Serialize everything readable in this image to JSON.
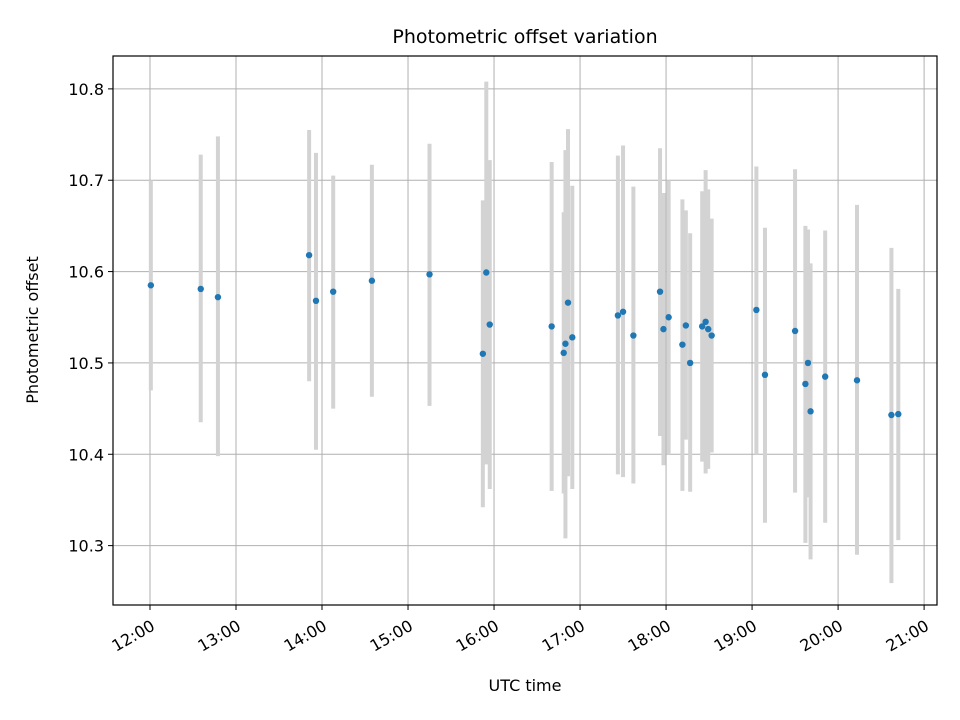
{
  "chart_data": {
    "type": "scatter",
    "title": "Photometric offset variation",
    "xlabel": "UTC time",
    "ylabel": "Photometric offset",
    "x_tick_labels": [
      "12:00",
      "13:00",
      "14:00",
      "15:00",
      "16:00",
      "17:00",
      "18:00",
      "19:00",
      "20:00",
      "21:00"
    ],
    "y_tick_labels": [
      "10.3",
      "10.4",
      "10.5",
      "10.6",
      "10.7",
      "10.8"
    ],
    "x_ticks_hours": [
      12,
      13,
      14,
      15,
      16,
      17,
      18,
      19,
      20,
      21
    ],
    "y_ticks": [
      10.3,
      10.4,
      10.5,
      10.6,
      10.7,
      10.8
    ],
    "xlim_hours": [
      11.57,
      21.15
    ],
    "ylim": [
      10.235,
      10.836
    ],
    "grid": true,
    "marker_color": "#1f77b4",
    "errorbar_color": "#d3d3d3",
    "series": [
      {
        "points": [
          {
            "t": 12.01,
            "y": 10.585,
            "lo": 10.47,
            "hi": 10.7
          },
          {
            "t": 12.59,
            "y": 10.581,
            "lo": 10.435,
            "hi": 10.728
          },
          {
            "t": 12.79,
            "y": 10.572,
            "lo": 10.398,
            "hi": 10.748
          },
          {
            "t": 13.85,
            "y": 10.618,
            "lo": 10.48,
            "hi": 10.755
          },
          {
            "t": 13.93,
            "y": 10.568,
            "lo": 10.405,
            "hi": 10.73
          },
          {
            "t": 14.13,
            "y": 10.578,
            "lo": 10.45,
            "hi": 10.705
          },
          {
            "t": 14.58,
            "y": 10.59,
            "lo": 10.463,
            "hi": 10.717
          },
          {
            "t": 15.25,
            "y": 10.597,
            "lo": 10.453,
            "hi": 10.74
          },
          {
            "t": 15.87,
            "y": 10.51,
            "lo": 10.342,
            "hi": 10.678
          },
          {
            "t": 15.91,
            "y": 10.599,
            "lo": 10.389,
            "hi": 10.808
          },
          {
            "t": 15.95,
            "y": 10.542,
            "lo": 10.362,
            "hi": 10.722
          },
          {
            "t": 16.67,
            "y": 10.54,
            "lo": 10.36,
            "hi": 10.72
          },
          {
            "t": 16.81,
            "y": 10.511,
            "lo": 10.357,
            "hi": 10.665
          },
          {
            "t": 16.83,
            "y": 10.521,
            "lo": 10.308,
            "hi": 10.733
          },
          {
            "t": 16.86,
            "y": 10.566,
            "lo": 10.376,
            "hi": 10.756
          },
          {
            "t": 16.91,
            "y": 10.528,
            "lo": 10.362,
            "hi": 10.694
          },
          {
            "t": 17.44,
            "y": 10.552,
            "lo": 10.378,
            "hi": 10.727
          },
          {
            "t": 17.5,
            "y": 10.556,
            "lo": 10.375,
            "hi": 10.738
          },
          {
            "t": 17.62,
            "y": 10.53,
            "lo": 10.368,
            "hi": 10.693
          },
          {
            "t": 17.93,
            "y": 10.578,
            "lo": 10.42,
            "hi": 10.735
          },
          {
            "t": 17.97,
            "y": 10.537,
            "lo": 10.388,
            "hi": 10.686
          },
          {
            "t": 18.03,
            "y": 10.55,
            "lo": 10.4,
            "hi": 10.7
          },
          {
            "t": 18.19,
            "y": 10.52,
            "lo": 10.36,
            "hi": 10.679
          },
          {
            "t": 18.23,
            "y": 10.541,
            "lo": 10.416,
            "hi": 10.667
          },
          {
            "t": 18.28,
            "y": 10.5,
            "lo": 10.359,
            "hi": 10.642
          },
          {
            "t": 18.42,
            "y": 10.54,
            "lo": 10.392,
            "hi": 10.688
          },
          {
            "t": 18.46,
            "y": 10.545,
            "lo": 10.379,
            "hi": 10.711
          },
          {
            "t": 18.49,
            "y": 10.537,
            "lo": 10.384,
            "hi": 10.69
          },
          {
            "t": 18.53,
            "y": 10.53,
            "lo": 10.402,
            "hi": 10.658
          },
          {
            "t": 19.05,
            "y": 10.558,
            "lo": 10.4,
            "hi": 10.715
          },
          {
            "t": 19.15,
            "y": 10.487,
            "lo": 10.325,
            "hi": 10.648
          },
          {
            "t": 19.5,
            "y": 10.535,
            "lo": 10.358,
            "hi": 10.712
          },
          {
            "t": 19.62,
            "y": 10.477,
            "lo": 10.303,
            "hi": 10.65
          },
          {
            "t": 19.65,
            "y": 10.5,
            "lo": 10.353,
            "hi": 10.646
          },
          {
            "t": 19.68,
            "y": 10.447,
            "lo": 10.285,
            "hi": 10.609
          },
          {
            "t": 19.85,
            "y": 10.485,
            "lo": 10.325,
            "hi": 10.645
          },
          {
            "t": 20.22,
            "y": 10.481,
            "lo": 10.29,
            "hi": 10.673
          },
          {
            "t": 20.62,
            "y": 10.443,
            "lo": 10.259,
            "hi": 10.626
          },
          {
            "t": 20.7,
            "y": 10.444,
            "lo": 10.306,
            "hi": 10.581
          }
        ]
      }
    ]
  }
}
